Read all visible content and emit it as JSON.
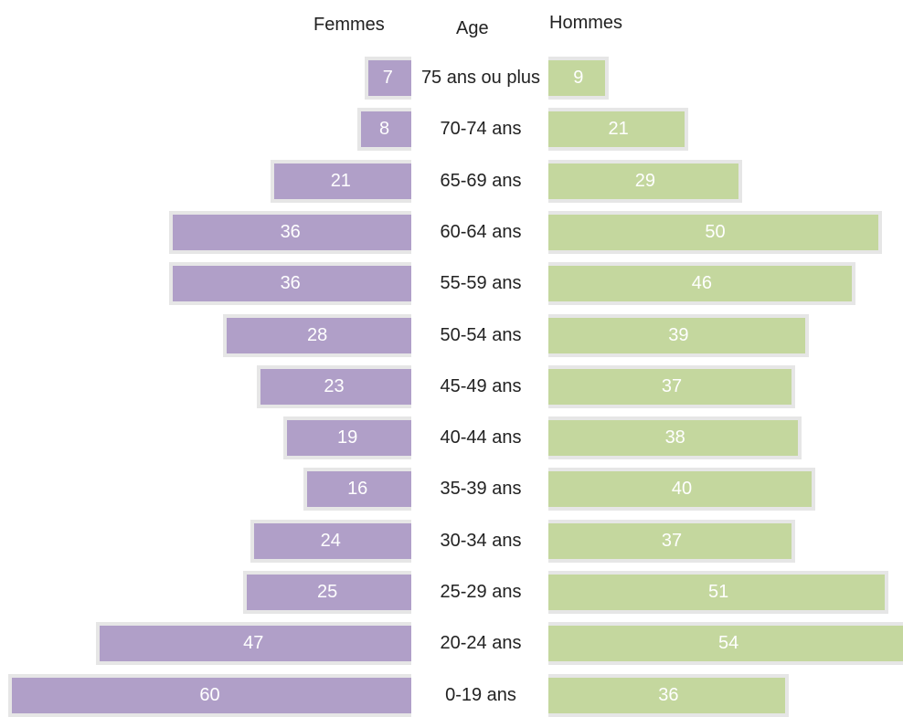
{
  "chart_data": {
    "type": "bar",
    "orientation": "horizontal",
    "layout": "population-pyramid",
    "column_headers": {
      "left": "Femmes",
      "center": "Age",
      "right": "Hommes"
    },
    "categories": [
      "75 ans ou plus",
      "70-74 ans",
      "65-69 ans",
      "60-64 ans",
      "55-59 ans",
      "50-54 ans",
      "45-49 ans",
      "40-44 ans",
      "35-39 ans",
      "30-34 ans",
      "25-29 ans",
      "20-24 ans",
      "0-19 ans"
    ],
    "series": [
      {
        "name": "Femmes",
        "values": [
          7,
          8,
          21,
          36,
          36,
          28,
          23,
          19,
          16,
          24,
          25,
          47,
          60
        ]
      },
      {
        "name": "Hommes",
        "values": [
          9,
          21,
          29,
          50,
          46,
          39,
          37,
          38,
          40,
          37,
          51,
          54,
          36
        ]
      }
    ],
    "colors": {
      "Femmes": "#b09fc8",
      "Hommes": "#c4d79e"
    },
    "data_labels": true,
    "grid": false,
    "legend": "none"
  }
}
